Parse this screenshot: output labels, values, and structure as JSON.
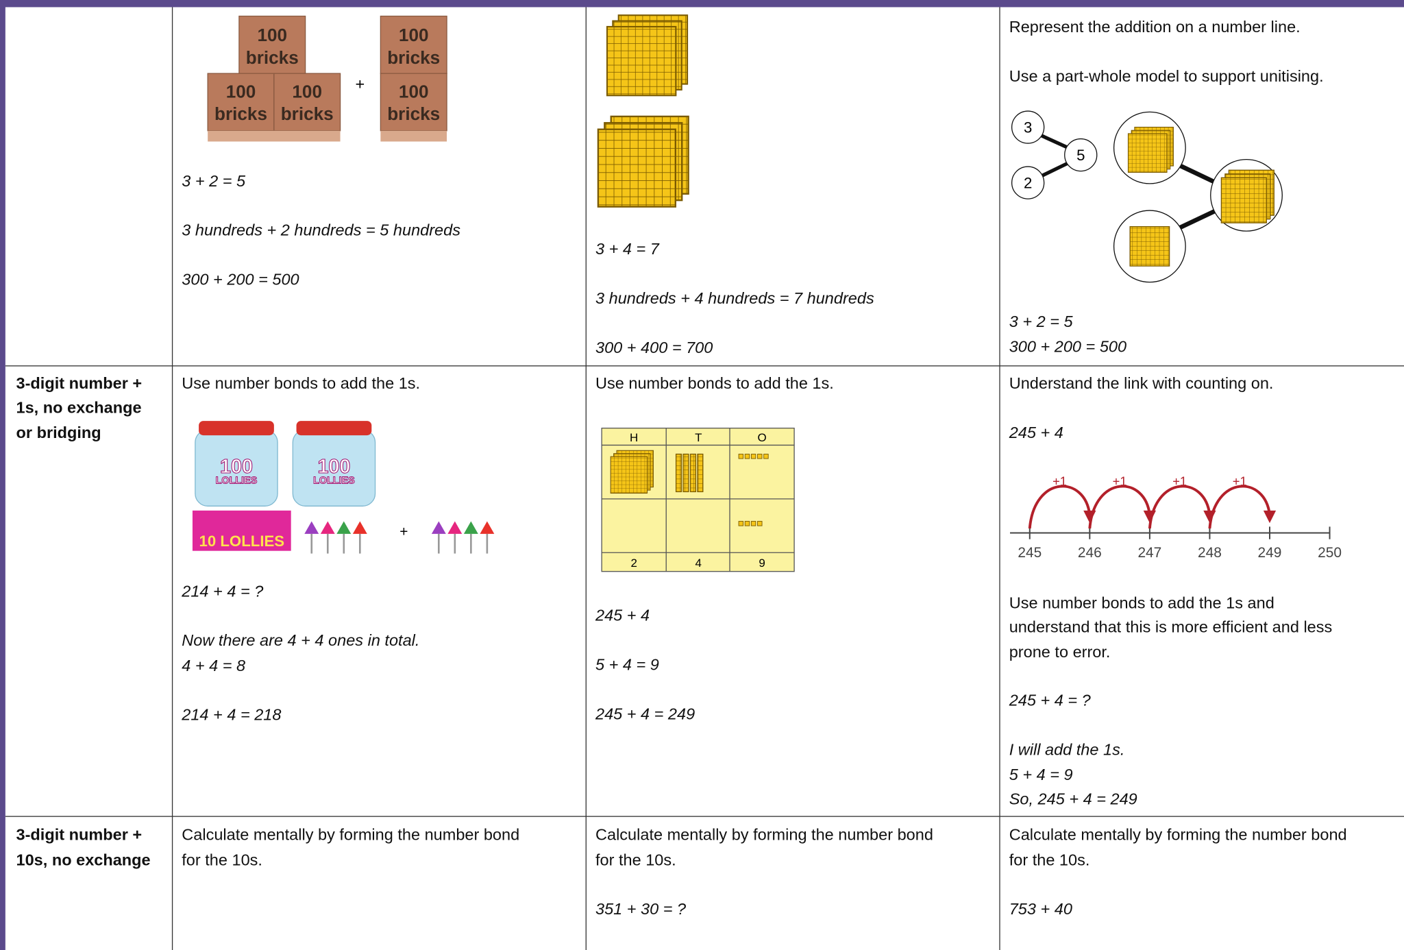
{
  "table": {
    "rows": [
      {
        "cells": [
          {
            "image": {
              "brick_label": [
                "100",
                "bricks"
              ],
              "operator": "+"
            },
            "lines": [
              "3 + 2 = 5",
              "3 hundreds + 2 hundreds = 5 hundreds",
              "300 + 200 = 500"
            ]
          },
          {
            "lines": [
              "3 + 4 = 7",
              "3 hundreds + 4 hundreds = 7 hundreds",
              "300 + 400 = 700"
            ]
          },
          {
            "intro": [
              "Represent the addition on a number line.",
              "Use a part-whole model to support unitising."
            ],
            "image": {
              "bond": [
                "3",
                "5",
                "2"
              ]
            },
            "lines": [
              "3 + 2 = 5",
              "300 + 200 = 500"
            ]
          }
        ]
      },
      {
        "label": [
          "3-digit number +",
          "1s, no exchange",
          "or bridging"
        ],
        "cells": [
          {
            "intro": [
              "Use number bonds to add the 1s."
            ],
            "image": {
              "jar_label": [
                "100",
                "LOLLIES"
              ],
              "box_label": "10 LOLLIES",
              "operator": "+"
            },
            "lines": [
              "214 + 4 = ?",
              "Now there are 4 + 4 ones in total.",
              "4 + 4 = 8",
              "214 + 4 = 218"
            ]
          },
          {
            "intro": [
              "Use number bonds to add the 1s."
            ],
            "image": {
              "headers": [
                "H",
                "T",
                "O"
              ],
              "totals": [
                "2",
                "4",
                "9"
              ]
            },
            "lines": [
              "245 + 4",
              "5 + 4 = 9",
              "245 + 4 = 249"
            ]
          },
          {
            "intro": [
              "Understand the link with counting on."
            ],
            "lines": [
              "245 + 4"
            ],
            "image": {
              "jump": "+1",
              "ticks": [
                "245",
                "246",
                "247",
                "248",
                "249",
                "250"
              ]
            },
            "text": [
              "Use number bonds to add the 1s and",
              "understand that this is more efficient and less",
              "prone to error."
            ],
            "working": [
              "245 + 4 = ?",
              "I will add the 1s.",
              "5 + 4 = 9",
              "So, 245 + 4 = 249"
            ]
          }
        ]
      },
      {
        "label": [
          "3-digit number +",
          "10s, no exchange"
        ],
        "cells": [
          {
            "intro": [
              "Calculate mentally by forming the number bond",
              "for the 10s."
            ]
          },
          {
            "intro": [
              "Calculate mentally by forming the number bond",
              "for the 10s."
            ],
            "lines": [
              "351 + 30 = ?"
            ]
          },
          {
            "intro": [
              "Calculate mentally by forming the number bond",
              "for the 10s."
            ],
            "lines": [
              "753 + 40"
            ]
          }
        ]
      }
    ]
  }
}
